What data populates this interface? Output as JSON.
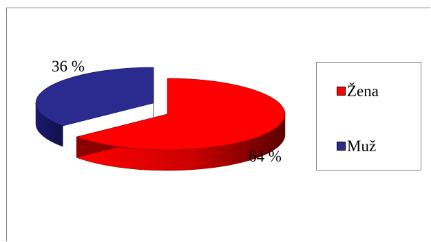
{
  "chart_data": {
    "type": "pie",
    "style": "3d-exploded",
    "slices": [
      {
        "name": "Žena",
        "value": 64,
        "label": "64 %",
        "color": "#ff0000",
        "side_color": "#8b0000"
      },
      {
        "name": "Muž",
        "value": 36,
        "label": "36 %",
        "color": "#2a2a8f",
        "side_color": "#0c0c5a"
      }
    ],
    "legend_position": "right"
  }
}
